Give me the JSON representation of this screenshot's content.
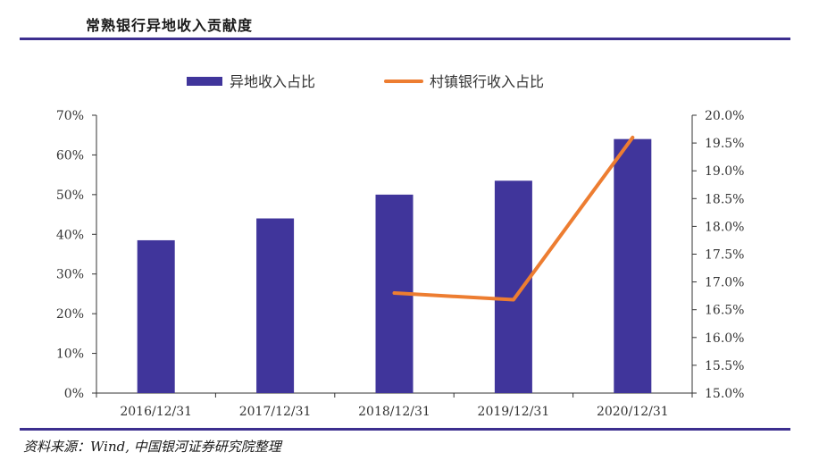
{
  "header": {
    "title": "常熟银行异地收入贡献度"
  },
  "footer": {
    "source": "资料来源：Wind, 中国银河证券研究院整理"
  },
  "colors": {
    "accent": "#3d2f8f",
    "bar": "#40359b",
    "line": "#ed7d31"
  },
  "chart_data": {
    "type": "bar+line",
    "categories": [
      "2016/12/31",
      "2017/12/31",
      "2018/12/31",
      "2019/12/31",
      "2020/12/31"
    ],
    "series": [
      {
        "name": "异地收入占比",
        "type": "bar",
        "axis": "left",
        "values": [
          0.385,
          0.44,
          0.5,
          0.535,
          0.64
        ]
      },
      {
        "name": "村镇银行收入占比",
        "type": "line",
        "axis": "right",
        "values": [
          null,
          null,
          0.168,
          0.1668,
          0.196
        ]
      }
    ],
    "y_left": {
      "ylim": [
        0,
        0.7
      ],
      "ticks": [
        0,
        0.1,
        0.2,
        0.3,
        0.4,
        0.5,
        0.6,
        0.7
      ],
      "tick_labels": [
        "0%",
        "10%",
        "20%",
        "30%",
        "40%",
        "50%",
        "60%",
        "70%"
      ]
    },
    "y_right": {
      "ylim": [
        0.15,
        0.2
      ],
      "ticks": [
        0.15,
        0.155,
        0.16,
        0.165,
        0.17,
        0.175,
        0.18,
        0.185,
        0.19,
        0.195,
        0.2
      ],
      "tick_labels": [
        "15.0%",
        "15.5%",
        "16.0%",
        "16.5%",
        "17.0%",
        "17.5%",
        "18.0%",
        "18.5%",
        "19.0%",
        "19.5%",
        "20.0%"
      ]
    },
    "legend": "top-center",
    "grid": false
  }
}
